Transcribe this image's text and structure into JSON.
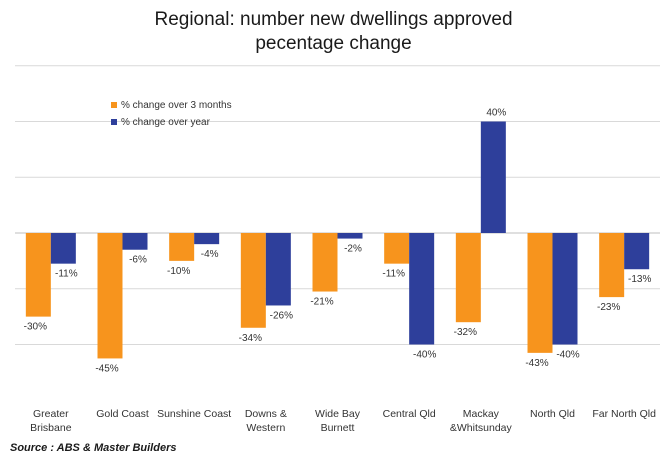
{
  "chart_data": {
    "type": "bar",
    "title": [
      "Regional: number new dwellings approved",
      "pecentage change"
    ],
    "categories": [
      [
        "Greater",
        "Brisbane"
      ],
      [
        "Gold Coast"
      ],
      [
        "Sunshine Coast"
      ],
      [
        "Downs &",
        "Western"
      ],
      [
        "Wide Bay",
        "Burnett"
      ],
      [
        "Central Qld"
      ],
      [
        "Mackay",
        "&Whitsunday"
      ],
      [
        "North Qld"
      ],
      [
        "Far North Qld"
      ]
    ],
    "series": [
      {
        "name": "% change over 3 months",
        "color": "#F7941D",
        "values": [
          -30,
          -45,
          -10,
          -34,
          -21,
          -11,
          -32,
          -43,
          -23
        ],
        "labels": [
          "-30%",
          "-45%",
          "-10%",
          "-34%",
          "-21%",
          "-11%",
          "-32%",
          "-43%",
          "-23%"
        ]
      },
      {
        "name": "% change over year",
        "color": "#2E3F9B",
        "values": [
          -11,
          -6,
          -4,
          -26,
          -2,
          -40,
          40,
          -40,
          -13
        ],
        "labels": [
          "-11%",
          "-6%",
          "-4%",
          "-26%",
          "-2%",
          "-40%",
          "40%",
          "-40%",
          "-13%"
        ]
      }
    ],
    "ylim": [
      -60,
      60
    ],
    "gridlines": [
      -40,
      -20,
      0,
      20,
      40
    ],
    "grid": true,
    "legend": "top-left",
    "xlabel": "",
    "ylabel": ""
  },
  "source": "Source : ABS & Master Builders"
}
